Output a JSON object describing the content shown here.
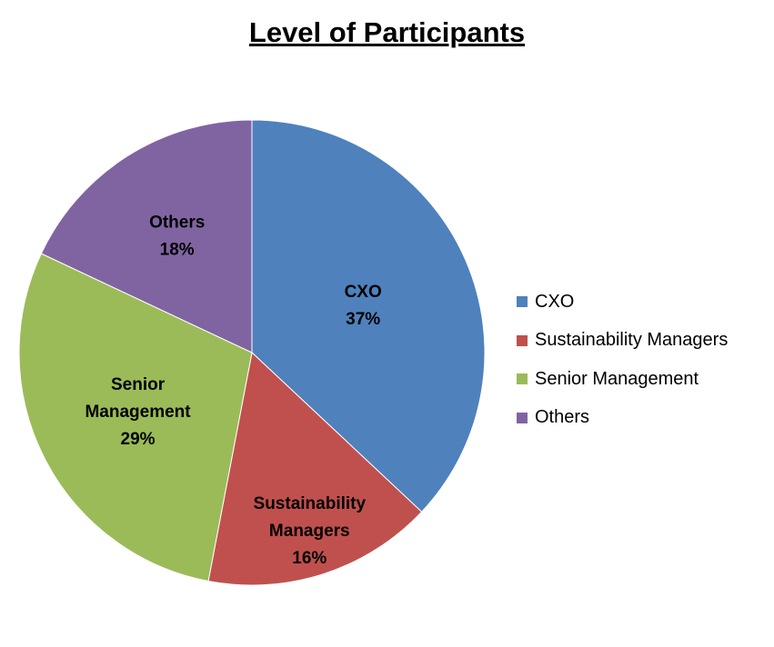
{
  "chart_data": {
    "type": "pie",
    "title": "Level of Participants",
    "slices": [
      {
        "label": "CXO",
        "label_lines": [
          "CXO"
        ],
        "value": 37,
        "display": "37%",
        "color": "#4F81BD"
      },
      {
        "label": "Sustainability Managers",
        "label_lines": [
          "Sustainability",
          "Managers"
        ],
        "value": 16,
        "display": "16%",
        "color": "#C0504D"
      },
      {
        "label": "Senior Management",
        "label_lines": [
          "Senior",
          "Management"
        ],
        "value": 29,
        "display": "29%",
        "color": "#9BBB59"
      },
      {
        "label": "Others",
        "label_lines": [
          "Others"
        ],
        "value": 18,
        "display": "18%",
        "color": "#8064A2"
      }
    ],
    "legend_position": "right"
  }
}
